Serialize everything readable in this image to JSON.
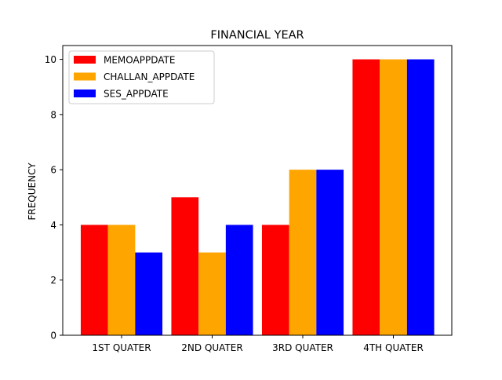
{
  "chart_data": {
    "type": "bar",
    "title": "FINANCIAL YEAR",
    "xlabel": "",
    "ylabel": "FREQUENCY",
    "categories": [
      "1ST QUATER",
      "2ND QUATER",
      "3RD QUATER",
      "4TH QUATER"
    ],
    "series": [
      {
        "name": "MEMOAPPDATE",
        "color": "#ff0000",
        "values": [
          4,
          5,
          4,
          10
        ]
      },
      {
        "name": "CHALLAN_APPDATE",
        "color": "#ffa500",
        "values": [
          4,
          3,
          6,
          10
        ]
      },
      {
        "name": "SES_APPDATE",
        "color": "#0000ff",
        "values": [
          3,
          4,
          6,
          10
        ]
      }
    ],
    "ylim": [
      0,
      10.5
    ],
    "yticks": [
      0,
      2,
      4,
      6,
      8,
      10
    ],
    "grid": false,
    "legend_position": "top-left"
  }
}
